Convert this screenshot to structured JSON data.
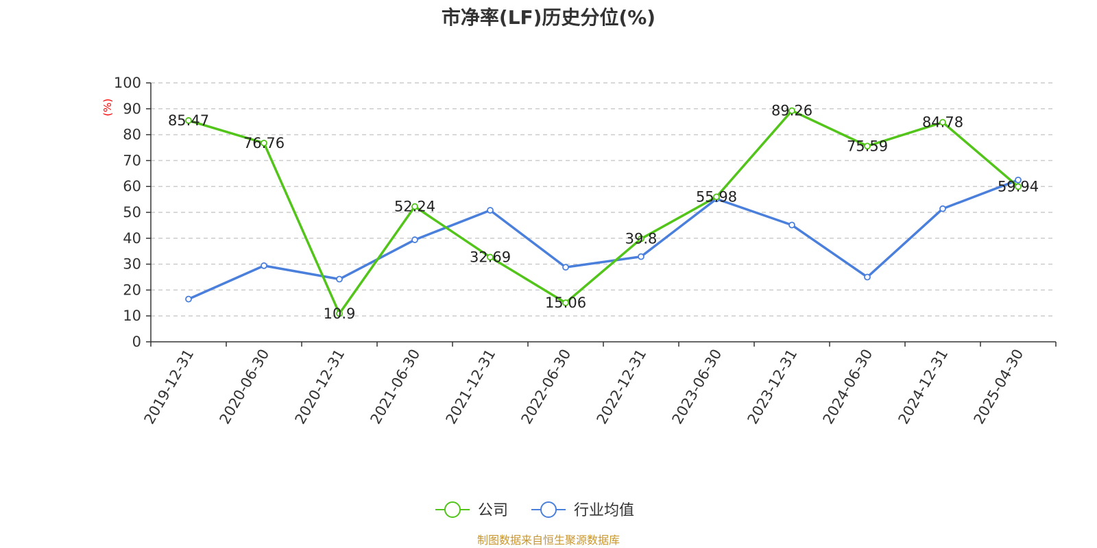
{
  "chart_data": {
    "type": "line",
    "title": "市净率(LF)历史分位(%)",
    "ylabel": "(%)",
    "xlabel": "",
    "ylim": [
      0,
      100
    ],
    "yticks": [
      0,
      10,
      20,
      30,
      40,
      50,
      60,
      70,
      80,
      90,
      100
    ],
    "categories": [
      "2019-12-31",
      "2020-06-30",
      "2020-12-31",
      "2021-06-30",
      "2021-12-31",
      "2022-06-30",
      "2022-12-31",
      "2023-06-30",
      "2023-12-31",
      "2024-06-30",
      "2024-12-31",
      "2025-04-30"
    ],
    "series": [
      {
        "name": "公司",
        "color": "#52c41a",
        "values": [
          85.47,
          76.76,
          10.9,
          52.24,
          32.69,
          15.06,
          39.8,
          55.98,
          89.26,
          75.59,
          84.78,
          59.94
        ],
        "labels": [
          "85.47",
          "76.76",
          "10.9",
          "52.24",
          "32.69",
          "15.06",
          "39.8",
          "55.98",
          "89.26",
          "75.59",
          "84.78",
          "59.94"
        ]
      },
      {
        "name": "行业均值",
        "color": "#4a7fdc",
        "values": [
          16.5,
          29.4,
          24.2,
          39.4,
          50.8,
          28.8,
          32.9,
          55.2,
          45.1,
          25.0,
          51.4,
          62.5
        ]
      }
    ],
    "grid": true,
    "legend_position": "bottom-center"
  },
  "ylabel_color": "#ff0000",
  "source_note": "制图数据来自恒生聚源数据库",
  "source_note_color": "#c8962f"
}
